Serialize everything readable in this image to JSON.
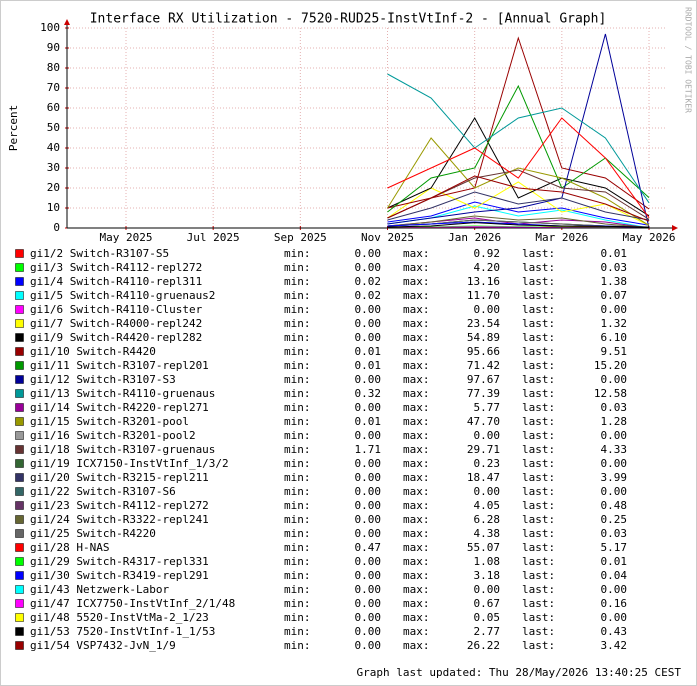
{
  "chart_data": {
    "type": "line",
    "title": "Interface RX Utilization - 7520-RUD25-InstVtInf-2 - [Annual Graph]",
    "y_label": "Percent",
    "watermark": "RRDTOOL / TOBI OETIKER",
    "footer": "Graph last updated: Thu 28/May/2026 13:40:25 CEST",
    "stat_labels": [
      "min:",
      "max:",
      "last:"
    ],
    "x": [
      "2025-11",
      "2025-12",
      "2026-01",
      "2026-02",
      "2026-03",
      "2026-04",
      "2026-05"
    ],
    "xticks": [
      {
        "value": "2025-05",
        "label": "May 2025"
      },
      {
        "value": "2025-07",
        "label": "Jul 2025"
      },
      {
        "value": "2025-09",
        "label": "Sep 2025"
      },
      {
        "value": "2025-11",
        "label": "Nov 2025"
      },
      {
        "value": "2026-01",
        "label": "Jan 2026"
      },
      {
        "value": "2026-03",
        "label": "Mar 2026"
      },
      {
        "value": "2026-05",
        "label": "May 2026"
      }
    ],
    "ylim": [
      0,
      100
    ],
    "yticks": [
      0,
      10,
      20,
      30,
      40,
      50,
      60,
      70,
      80,
      90,
      100
    ],
    "grid": true,
    "series": [
      {
        "name": "gi1/2 Switch-R3107-S5",
        "color": "#ff0000",
        "min": "0.00",
        "max": "0.92",
        "last": "0.01",
        "values": [
          0.1,
          0.3,
          0.5,
          0.2,
          0.9,
          0.4,
          0.01
        ]
      },
      {
        "name": "gi1/3 Switch-R4112-repl272",
        "color": "#00ff00",
        "min": "0.00",
        "max": "4.20",
        "last": "0.03",
        "values": [
          1,
          2,
          4,
          3,
          2,
          1,
          0.03
        ]
      },
      {
        "name": "gi1/4 Switch-R4110-repl311",
        "color": "#0000ff",
        "min": "0.02",
        "max": "13.16",
        "last": "1.38",
        "values": [
          3,
          6,
          13,
          8,
          10,
          5,
          1.38
        ]
      },
      {
        "name": "gi1/5 Switch-R4110-gruenaus2",
        "color": "#00ffff",
        "min": "0.02",
        "max": "11.70",
        "last": "0.07",
        "values": [
          2,
          5,
          11,
          6,
          9,
          4,
          0.07
        ]
      },
      {
        "name": "gi1/6 Switch-R4110-Cluster",
        "color": "#ff00ff",
        "min": "0.00",
        "max": "0.00",
        "last": "0.00",
        "values": [
          0,
          0,
          0,
          0,
          0,
          0,
          0
        ]
      },
      {
        "name": "gi1/7 Switch-R4000-repl242",
        "color": "#ffff00",
        "min": "0.00",
        "max": "23.54",
        "last": "1.32",
        "values": [
          5,
          20,
          10,
          23,
          8,
          12,
          1.32
        ]
      },
      {
        "name": "gi1/9 Switch-R4420-repl282",
        "color": "#000000",
        "min": "0.00",
        "max": "54.89",
        "last": "6.10",
        "values": [
          10,
          20,
          55,
          15,
          25,
          20,
          6.1
        ]
      },
      {
        "name": "gi1/10 Switch-R4420",
        "color": "#990000",
        "min": "0.01",
        "max": "95.66",
        "last": "9.51",
        "values": [
          10,
          15,
          20,
          95,
          30,
          25,
          9.51
        ]
      },
      {
        "name": "gi1/11 Switch-R3107-repl201",
        "color": "#009900",
        "min": "0.01",
        "max": "71.42",
        "last": "15.20",
        "values": [
          8,
          25,
          30,
          71,
          20,
          35,
          15.2
        ]
      },
      {
        "name": "gi1/12 Switch-R3107-S3",
        "color": "#000099",
        "min": "0.00",
        "max": "97.67",
        "last": "0.00",
        "values": [
          2,
          5,
          8,
          10,
          15,
          97,
          0
        ]
      },
      {
        "name": "gi1/13 Switch-R4110-gruenaus",
        "color": "#009999",
        "min": "0.32",
        "max": "77.39",
        "last": "12.58",
        "values": [
          77,
          65,
          40,
          55,
          60,
          45,
          12.58
        ]
      },
      {
        "name": "gi1/14 Switch-R4220-repl271",
        "color": "#990099",
        "min": "0.00",
        "max": "5.77",
        "last": "0.03",
        "values": [
          1,
          3,
          5,
          2,
          4,
          3,
          0.03
        ]
      },
      {
        "name": "gi1/15 Switch-R3201-pool",
        "color": "#999900",
        "min": "0.01",
        "max": "47.70",
        "last": "1.28",
        "values": [
          10,
          45,
          20,
          30,
          25,
          15,
          1.28
        ]
      },
      {
        "name": "gi1/16 Switch-R3201-pool2",
        "color": "#999999",
        "min": "0.00",
        "max": "0.00",
        "last": "0.00",
        "values": [
          0,
          0,
          0,
          0,
          0,
          0,
          0
        ]
      },
      {
        "name": "gi1/18 Switch-R3107-gruenaus",
        "color": "#663333",
        "min": "1.71",
        "max": "29.71",
        "last": "4.33",
        "values": [
          5,
          15,
          25,
          29,
          20,
          18,
          4.33
        ]
      },
      {
        "name": "gi1/19 ICX7150-InstVtInf_1/3/2",
        "color": "#336633",
        "min": "0.00",
        "max": "0.23",
        "last": "0.00",
        "values": [
          0.1,
          0.2,
          0.1,
          0.2,
          0.1,
          0.1,
          0
        ]
      },
      {
        "name": "gi1/20 Switch-R3215-repl211",
        "color": "#333366",
        "min": "0.00",
        "max": "18.47",
        "last": "3.99",
        "values": [
          4,
          10,
          18,
          12,
          15,
          8,
          3.99
        ]
      },
      {
        "name": "gi1/22 Switch-R3107-S6",
        "color": "#336666",
        "min": "0.00",
        "max": "0.00",
        "last": "0.00",
        "values": [
          0,
          0,
          0,
          0,
          0,
          0,
          0
        ]
      },
      {
        "name": "gi1/23 Switch-R4112-repl272",
        "color": "#663366",
        "min": "0.00",
        "max": "4.05",
        "last": "0.48",
        "values": [
          1,
          2,
          4,
          3,
          2,
          1,
          0.48
        ]
      },
      {
        "name": "gi1/24 Switch-R3322-repl241",
        "color": "#666633",
        "min": "0.00",
        "max": "6.28",
        "last": "0.25",
        "values": [
          1,
          3,
          6,
          4,
          5,
          2,
          0.25
        ]
      },
      {
        "name": "gi1/25 Switch-R4220",
        "color": "#666666",
        "min": "0.00",
        "max": "4.38",
        "last": "0.03",
        "values": [
          1,
          2,
          4,
          3,
          2,
          1,
          0.03
        ]
      },
      {
        "name": "gi1/28 H-NAS",
        "color": "#ff0000",
        "min": "0.47",
        "max": "55.07",
        "last": "5.17",
        "values": [
          20,
          30,
          40,
          25,
          55,
          35,
          5.17
        ]
      },
      {
        "name": "gi1/29 Switch-R4317-repl331",
        "color": "#00ff00",
        "min": "0.00",
        "max": "1.08",
        "last": "0.01",
        "values": [
          0.2,
          0.5,
          1,
          0.6,
          0.4,
          0.3,
          0.01
        ]
      },
      {
        "name": "gi1/30 Switch-R3419-repl291",
        "color": "#0000ff",
        "min": "0.00",
        "max": "3.18",
        "last": "0.04",
        "values": [
          1,
          2,
          3,
          2,
          1,
          1,
          0.04
        ]
      },
      {
        "name": "gi1/43 Netzwerk-Labor",
        "color": "#00ffff",
        "min": "0.00",
        "max": "0.00",
        "last": "0.00",
        "values": [
          0,
          0,
          0,
          0,
          0,
          0,
          0
        ]
      },
      {
        "name": "gi1/47 ICX7750-InstVtInf_2/1/48",
        "color": "#ff00ff",
        "min": "0.00",
        "max": "0.67",
        "last": "0.16",
        "values": [
          0.1,
          0.3,
          0.6,
          0.4,
          0.2,
          0.1,
          0.16
        ]
      },
      {
        "name": "gi1/48 5520-InstVtMa-2_1/23",
        "color": "#ffff00",
        "min": "0.00",
        "max": "0.05",
        "last": "0.00",
        "values": [
          0,
          0.05,
          0,
          0.02,
          0.01,
          0,
          0
        ]
      },
      {
        "name": "gi1/53 7520-InstVtInf-1_1/53",
        "color": "#000000",
        "min": "0.00",
        "max": "2.77",
        "last": "0.43",
        "values": [
          0.5,
          1,
          2.7,
          1.5,
          1,
          0.8,
          0.43
        ]
      },
      {
        "name": "gi1/54 VSP7432-JvN_1/9",
        "color": "#990000",
        "min": "0.00",
        "max": "26.22",
        "last": "3.42",
        "values": [
          5,
          15,
          26,
          20,
          18,
          12,
          3.42
        ]
      }
    ]
  }
}
